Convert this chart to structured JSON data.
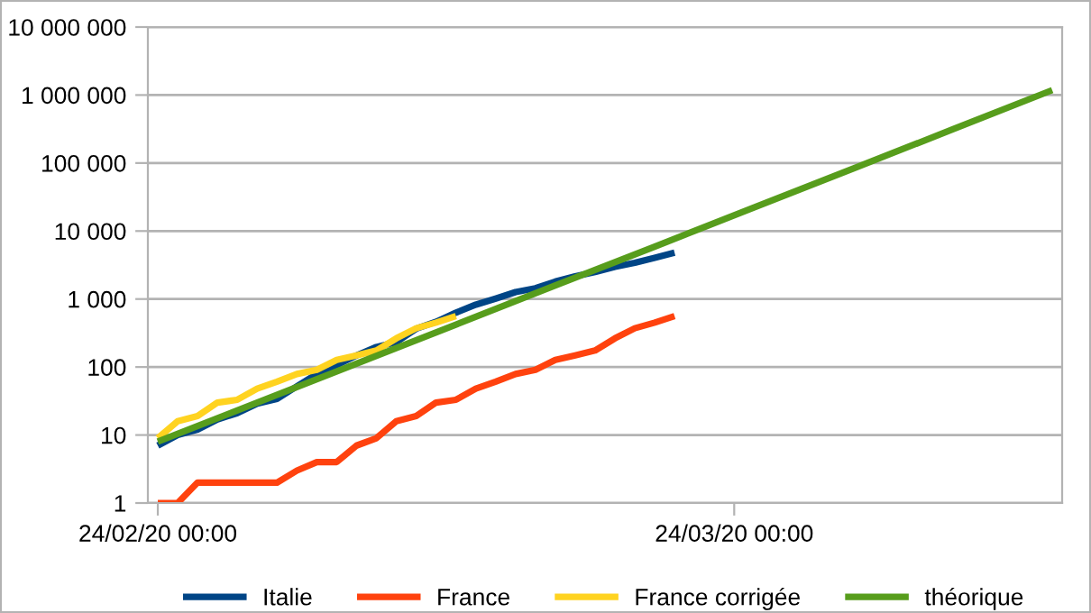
{
  "chart_data": {
    "type": "line",
    "xlim": [
      "2020-02-23T12:00",
      "2020-04-09T12:00"
    ],
    "xticks": [
      {
        "value": "2020-02-24T00:00",
        "label": "24/02/20 00:00"
      },
      {
        "value": "2020-03-24T00:00",
        "label": "24/03/20 00:00"
      }
    ],
    "ylim": [
      1,
      10000000
    ],
    "yticks": [
      {
        "value": 1,
        "label": "1"
      },
      {
        "value": 10,
        "label": "10"
      },
      {
        "value": 100,
        "label": "100"
      },
      {
        "value": 1000,
        "label": "1 000"
      },
      {
        "value": 10000,
        "label": "10 000"
      },
      {
        "value": 100000,
        "label": "100 000"
      },
      {
        "value": 1000000,
        "label": "1 000 000"
      },
      {
        "value": 10000000,
        "label": "10 000 000"
      }
    ],
    "log": "y",
    "grid": "y",
    "legend": "bottom",
    "marker": "none",
    "line_style": "solid",
    "series": [
      {
        "name": "Italie",
        "color": "#004586",
        "x": [
          "2020-02-24",
          "2020-02-25",
          "2020-02-26",
          "2020-02-27",
          "2020-02-28",
          "2020-02-29",
          "2020-03-01",
          "2020-03-02",
          "2020-03-03",
          "2020-03-04",
          "2020-03-05",
          "2020-03-06",
          "2020-03-07",
          "2020-03-08",
          "2020-03-09",
          "2020-03-10",
          "2020-03-11",
          "2020-03-12",
          "2020-03-13",
          "2020-03-14",
          "2020-03-15",
          "2020-03-16",
          "2020-03-17",
          "2020-03-18",
          "2020-03-19",
          "2020-03-20",
          "2020-03-21"
        ],
        "values": [
          7,
          10,
          12,
          17,
          21,
          29,
          34,
          52,
          79,
          107,
          148,
          197,
          233,
          366,
          463,
          631,
          827,
          1016,
          1266,
          1441,
          1809,
          2158,
          2503,
          2978,
          3405,
          4032,
          4825
        ]
      },
      {
        "name": "France",
        "color": "#ff420e",
        "x": [
          "2020-02-24",
          "2020-02-25",
          "2020-02-26",
          "2020-02-27",
          "2020-02-28",
          "2020-02-29",
          "2020-03-01",
          "2020-03-02",
          "2020-03-03",
          "2020-03-04",
          "2020-03-05",
          "2020-03-06",
          "2020-03-07",
          "2020-03-08",
          "2020-03-09",
          "2020-03-10",
          "2020-03-11",
          "2020-03-12",
          "2020-03-13",
          "2020-03-14",
          "2020-03-15",
          "2020-03-16",
          "2020-03-17",
          "2020-03-18",
          "2020-03-19",
          "2020-03-20",
          "2020-03-21"
        ],
        "values": [
          1,
          1,
          2,
          2,
          2,
          2,
          2,
          3,
          4,
          4,
          7,
          9,
          16,
          19,
          30,
          33,
          48,
          61,
          79,
          91,
          127,
          148,
          175,
          264,
          372,
          450,
          562
        ]
      },
      {
        "name": "France corrigée",
        "color": "#ffd320",
        "x": [
          "2020-02-24",
          "2020-02-25",
          "2020-02-26",
          "2020-02-27",
          "2020-02-28",
          "2020-02-29",
          "2020-03-01",
          "2020-03-02",
          "2020-03-03",
          "2020-03-04",
          "2020-03-05",
          "2020-03-06",
          "2020-03-07",
          "2020-03-08",
          "2020-03-09",
          "2020-03-10"
        ],
        "values": [
          9,
          16,
          19,
          30,
          33,
          48,
          61,
          79,
          91,
          127,
          148,
          175,
          264,
          372,
          450,
          562
        ]
      },
      {
        "name": "théorique",
        "color": "#579d1c",
        "x": [
          "2020-02-24",
          "2020-02-29",
          "2020-03-05",
          "2020-03-10",
          "2020-03-15",
          "2020-03-20",
          "2020-03-25",
          "2020-03-30",
          "2020-04-04",
          "2020-04-09"
        ],
        "values": [
          8,
          30,
          112,
          420,
          1580,
          5900,
          22200,
          83300,
          313000,
          1180000
        ]
      }
    ]
  }
}
